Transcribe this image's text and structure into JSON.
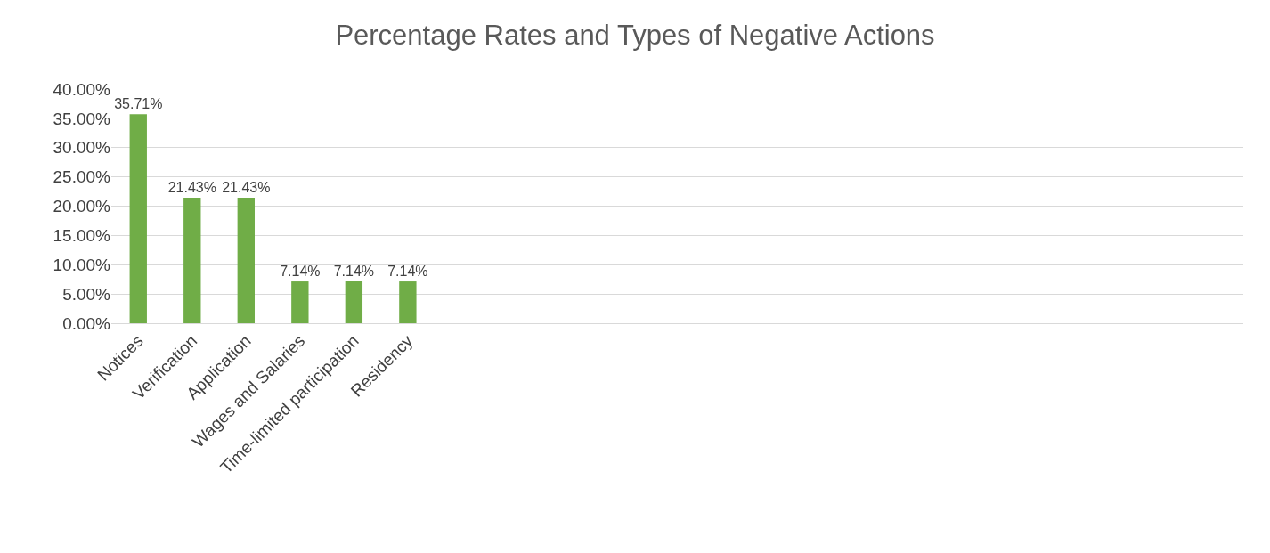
{
  "chart_data": {
    "type": "bar",
    "title": "Percentage Rates and Types of Negative Actions",
    "categories": [
      "Notices",
      "Verification",
      "Application",
      "Wages and Salaries",
      "Time-limited participation",
      "Residency",
      null,
      null,
      null,
      null,
      null,
      null,
      null,
      null,
      null,
      null,
      null,
      null,
      null,
      null,
      null
    ],
    "values": [
      35.71,
      21.43,
      21.43,
      7.14,
      7.14,
      7.14,
      null,
      null,
      null,
      null,
      null,
      null,
      null,
      null,
      null,
      null,
      null,
      null,
      null,
      null,
      null
    ],
    "value_labels": [
      "35.71%",
      "21.43%",
      "21.43%",
      "7.14%",
      "7.14%",
      "7.14%",
      null,
      null,
      null,
      null,
      null,
      null,
      null,
      null,
      null,
      null,
      null,
      null,
      null,
      null,
      null
    ],
    "color": "#70ad47",
    "ylim": [
      0,
      40
    ],
    "yticks": [
      {
        "value": 0,
        "label": "0.00%"
      },
      {
        "value": 5,
        "label": "5.00%"
      },
      {
        "value": 10,
        "label": "10.00%"
      },
      {
        "value": 15,
        "label": "15.00%"
      },
      {
        "value": 20,
        "label": "20.00%"
      },
      {
        "value": 25,
        "label": "25.00%"
      },
      {
        "value": 30,
        "label": "30.00%"
      },
      {
        "value": 35,
        "label": "35.00%"
      },
      {
        "value": 40,
        "label": "40.00%"
      }
    ],
    "grid": "y",
    "legend": false
  }
}
